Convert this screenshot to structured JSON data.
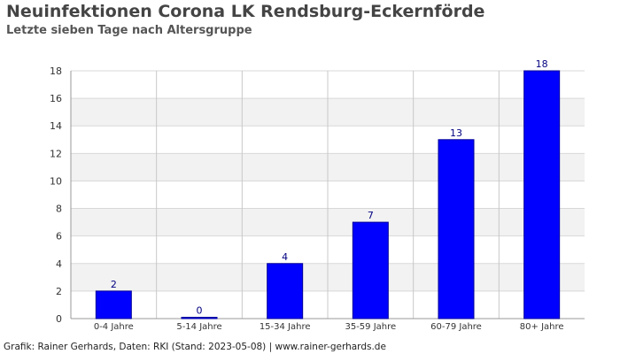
{
  "title": "Neuinfektionen Corona LK Rendsburg-Eckernförde",
  "subtitle": "Letzte sieben Tage nach Altersgruppe",
  "footer": "Grafik: Rainer Gerhards, Daten: RKI (Stand: 2023-05-08) | www.rainer-gerhards.de",
  "colors": {
    "bar": "#0000ff",
    "bar_border": "#00009a",
    "data_label": "#000080",
    "band": "#f2f2f2",
    "grid": "#d8d8d8",
    "axis": "#999999",
    "tick_label": "#333333"
  },
  "chart_data": {
    "type": "bar",
    "categories": [
      "0-4 Jahre",
      "5-14 Jahre",
      "15-34 Jahre",
      "35-59 Jahre",
      "60-79 Jahre",
      "80+ Jahre"
    ],
    "values": [
      2,
      0,
      4,
      7,
      13,
      18
    ],
    "ylim": [
      0,
      18
    ],
    "yticks": [
      0,
      2,
      4,
      6,
      8,
      10,
      12,
      14,
      16,
      18
    ],
    "xlabel": "",
    "ylabel": "",
    "grid": true,
    "legend": "none"
  }
}
